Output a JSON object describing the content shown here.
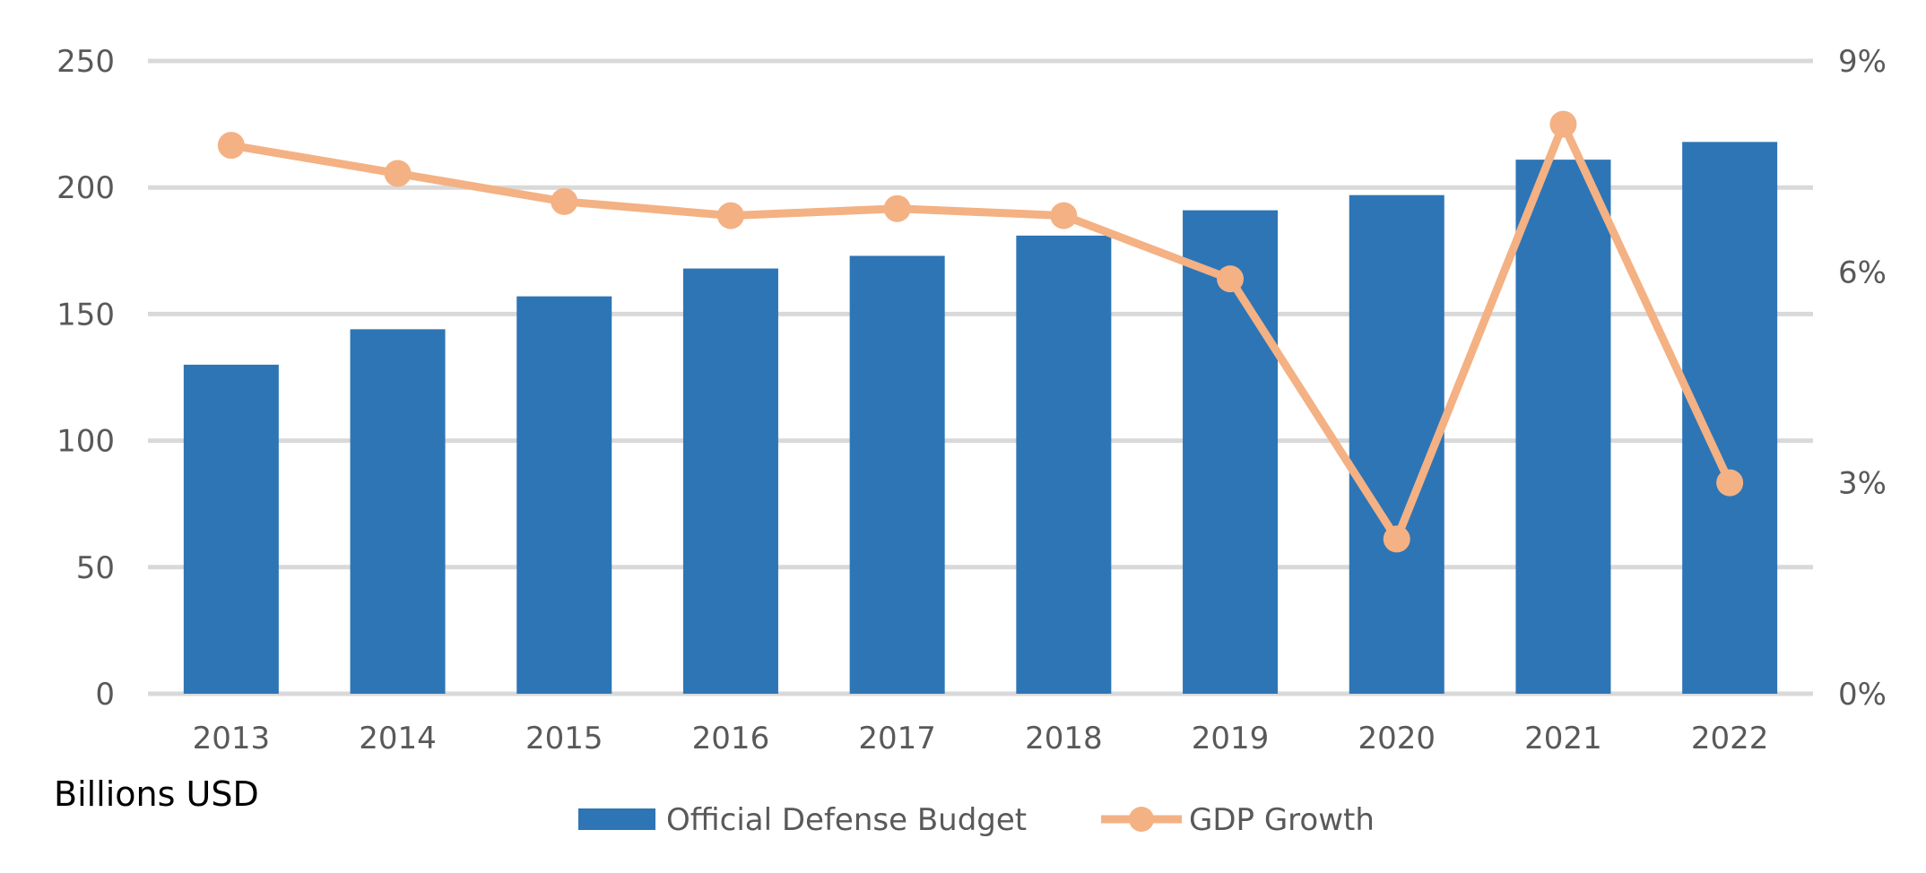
{
  "chart_data": {
    "type": "bar",
    "categories": [
      "2013",
      "2014",
      "2015",
      "2016",
      "2017",
      "2018",
      "2019",
      "2020",
      "2021",
      "2022"
    ],
    "series": [
      {
        "name": "Official Defense Budget",
        "type": "bar",
        "axis": "left",
        "values": [
          130,
          144,
          157,
          168,
          173,
          181,
          191,
          197,
          211,
          218
        ]
      },
      {
        "name": "GDP Growth",
        "type": "line",
        "axis": "right",
        "values": [
          7.8,
          7.4,
          7.0,
          6.8,
          6.9,
          6.8,
          5.9,
          2.2,
          8.1,
          3.0
        ]
      }
    ],
    "y_left": {
      "ticks": [
        0,
        50,
        100,
        150,
        200,
        250
      ],
      "tick_labels": [
        "0",
        "50",
        "100",
        "150",
        "200",
        "250"
      ],
      "ylim": [
        0,
        250
      ],
      "label": "Billions USD"
    },
    "y_right": {
      "ticks": [
        0,
        3,
        6,
        9
      ],
      "tick_labels": [
        "0%",
        "3%",
        "6%",
        "9%"
      ],
      "ylim": [
        0,
        9
      ]
    },
    "grid": true,
    "legend_position": "bottom",
    "colors": {
      "bar": "#2e75b6",
      "line": "#f4b183",
      "grid": "#d9d9d9",
      "axis_text": "#595959"
    }
  }
}
